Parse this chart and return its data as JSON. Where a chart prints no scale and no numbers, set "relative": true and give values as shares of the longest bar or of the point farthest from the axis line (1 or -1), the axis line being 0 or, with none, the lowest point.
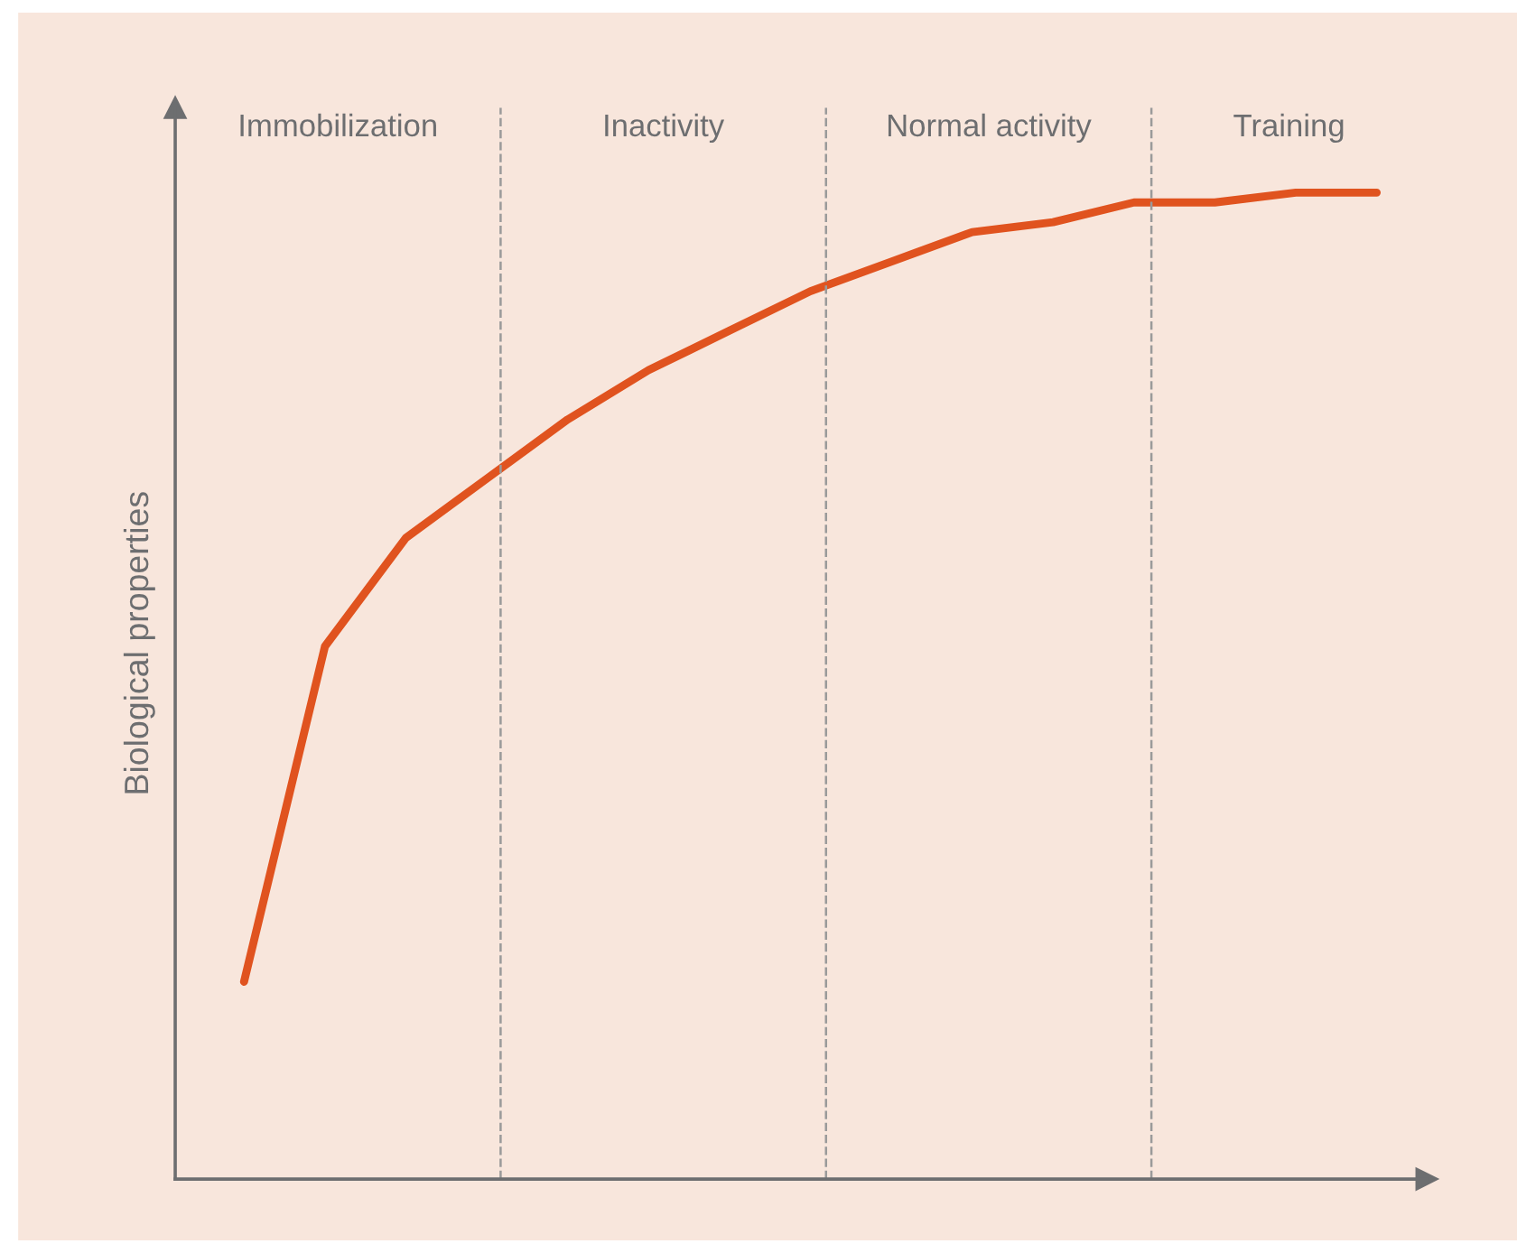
{
  "chart_data": {
    "type": "line",
    "relative": true,
    "ylabel": "Biological properties",
    "categories": [
      null,
      null,
      null,
      null,
      null,
      null,
      null,
      null,
      null,
      null,
      null,
      null,
      null,
      null,
      null
    ],
    "series": [
      {
        "color": "#e0531f",
        "values": [
          0.2,
          0.54,
          0.65,
          0.71,
          0.77,
          0.82,
          0.86,
          0.9,
          0.93,
          0.96,
          0.97,
          0.99,
          0.99,
          1.0,
          1.0
        ]
      }
    ],
    "annotations": [
      "Immobilization",
      "Inactivity",
      "Normal activity",
      "Training"
    ],
    "marker": "none",
    "line_style": "solid"
  }
}
